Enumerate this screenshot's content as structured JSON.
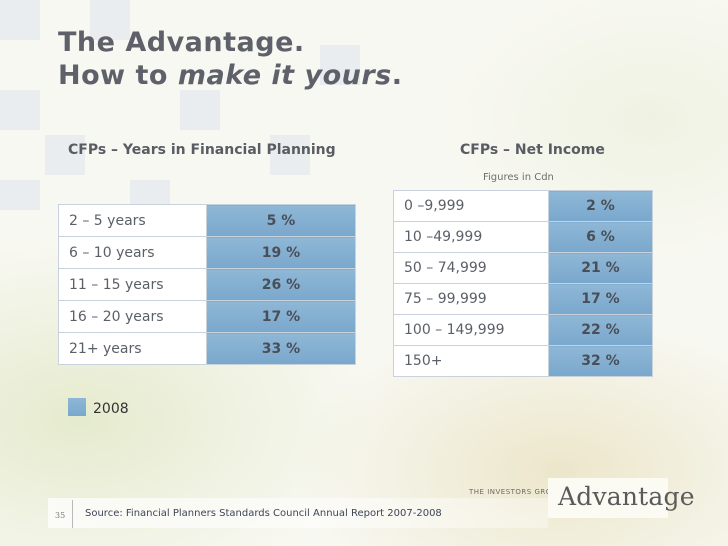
{
  "title": {
    "line1": "The Advantage.",
    "line2_prefix": "How to ",
    "line2_emphasis": "make it yours",
    "line2_suffix": "."
  },
  "years_section": {
    "heading": "CFPs – Years in Financial Planning",
    "rows": [
      {
        "label": "2 – 5 years",
        "value": "5 %"
      },
      {
        "label": "6 – 10 years",
        "value": "19 %"
      },
      {
        "label": "11 – 15 years",
        "value": "26 %"
      },
      {
        "label": "16 – 20 years",
        "value": "17 %"
      },
      {
        "label": "21+ years",
        "value": "33 %"
      }
    ]
  },
  "income_section": {
    "heading": "CFPs – Net Income",
    "note": "Figures in Cdn",
    "rows": [
      {
        "label": "0 –9,999",
        "value": "2 %"
      },
      {
        "label": "10 –49,999",
        "value": "6 %"
      },
      {
        "label": "50 – 74,999",
        "value": "21 %"
      },
      {
        "label": "75 – 99,999",
        "value": "17 %"
      },
      {
        "label": "100 – 149,999",
        "value": "22 %"
      },
      {
        "label": "150+",
        "value": "32 %"
      }
    ]
  },
  "legend": {
    "label": "2008",
    "color": "#86b0d2"
  },
  "footer": {
    "page_number": "35",
    "source": "Source: Financial Planners Standards Council Annual Report 2007-2008",
    "brand_group": "THE INVESTORS GROUP",
    "brand_logo": "Advantage"
  }
}
